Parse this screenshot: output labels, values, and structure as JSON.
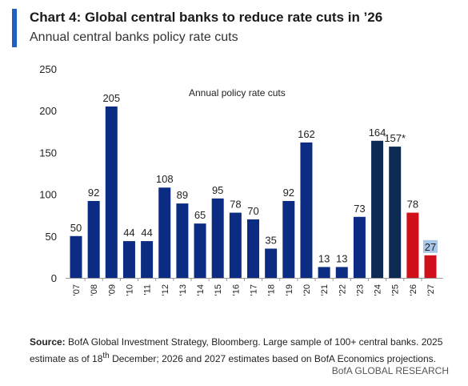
{
  "header": {
    "title": "Chart 4: Global central banks to reduce rate cuts in ’26",
    "subtitle": "Annual central banks policy rate cuts"
  },
  "chart_data": {
    "type": "bar",
    "annotation": "Annual policy rate cuts",
    "categories": [
      "'07",
      "'08",
      "'09",
      "'10",
      "'11",
      "'12",
      "'13",
      "'14",
      "'15",
      "'16",
      "'17",
      "'18",
      "'19",
      "'20",
      "'21",
      "'22",
      "'23",
      "'24",
      "'25",
      "'26",
      "'27"
    ],
    "values": [
      50,
      92,
      205,
      44,
      44,
      108,
      89,
      65,
      95,
      78,
      70,
      35,
      92,
      162,
      13,
      13,
      73,
      164,
      157,
      78,
      27
    ],
    "value_labels": [
      "50",
      "92",
      "205",
      "44",
      "44",
      "108",
      "89",
      "65",
      "95",
      "78",
      "70",
      "35",
      "92",
      "162",
      "13",
      "13",
      "73",
      "164",
      "157*",
      "78",
      "27"
    ],
    "bar_colors": [
      "#0b2c82",
      "#0b2c82",
      "#0b2c82",
      "#0b2c82",
      "#0b2c82",
      "#0b2c82",
      "#0b2c82",
      "#0b2c82",
      "#0b2c82",
      "#0b2c82",
      "#0b2c82",
      "#0b2c82",
      "#0b2c82",
      "#0b2c82",
      "#0b2c82",
      "#0b2c82",
      "#0b2c82",
      "#0d2a55",
      "#0d2a55",
      "#d0101a",
      "#d0101a"
    ],
    "highlighted_label_index": 20,
    "highlight_color": "#a9c7e8",
    "yticks": [
      0,
      50,
      100,
      150,
      200,
      250
    ],
    "ylim": [
      0,
      250
    ],
    "grid": false,
    "xlabel": "",
    "ylabel": ""
  },
  "source": {
    "label": "Source:",
    "text_1": " BofA Global Investment Strategy, Bloomberg. Large sample of 100+ central banks. 2025 estimate as of 18",
    "superscript": "th",
    "text_2": " December; 2026 and 2027 estimates based on BofA Economics projections."
  },
  "footer": {
    "text": "BofA GLOBAL RESEARCH"
  },
  "colors": {
    "accent": "#1f5fbf",
    "navy": "#0b2c82",
    "dark_navy": "#0d2a55",
    "red": "#d0101a"
  }
}
